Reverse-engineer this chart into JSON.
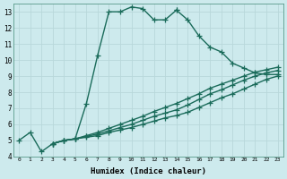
{
  "xlabel": "Humidex (Indice chaleur)",
  "bg_color": "#cdeaed",
  "line_color": "#1a6b5a",
  "grid_color": "#b8d8da",
  "xlim": [
    -0.5,
    23.5
  ],
  "ylim": [
    4,
    13.5
  ],
  "ytick_min": 4,
  "ytick_max": 13,
  "xticks": [
    0,
    1,
    2,
    3,
    4,
    5,
    6,
    7,
    8,
    9,
    10,
    11,
    12,
    13,
    14,
    15,
    16,
    17,
    18,
    19,
    20,
    21,
    22,
    23
  ],
  "yticks": [
    4,
    5,
    6,
    7,
    8,
    9,
    10,
    11,
    12,
    13
  ],
  "lines": [
    {
      "x": [
        0,
        1,
        2,
        3,
        4,
        5,
        6,
        7,
        8,
        9,
        10,
        11,
        12,
        13,
        14
      ],
      "y": [
        5.0,
        5.5,
        4.3,
        4.8,
        5.0,
        5.1,
        7.3,
        10.3,
        13.0,
        13.0,
        13.3,
        13.2,
        12.5,
        12.5,
        13.1
      ]
    },
    {
      "x": [
        14,
        15,
        16,
        17,
        18,
        19,
        20,
        21,
        22,
        23
      ],
      "y": [
        13.1,
        12.5,
        11.5,
        10.8,
        10.5,
        9.8,
        9.5,
        9.2,
        9.1,
        9.1
      ]
    },
    {
      "x": [
        3,
        4,
        5,
        6,
        7,
        8,
        9,
        10,
        11,
        12,
        13,
        14,
        15,
        16,
        17,
        18,
        19,
        20,
        21,
        22,
        23
      ],
      "y": [
        4.8,
        5.0,
        5.1,
        5.2,
        5.3,
        5.5,
        5.65,
        5.8,
        6.0,
        6.2,
        6.4,
        6.55,
        6.75,
        7.05,
        7.35,
        7.65,
        7.9,
        8.2,
        8.5,
        8.8,
        9.0
      ]
    },
    {
      "x": [
        3,
        4,
        5,
        6,
        7,
        8,
        9,
        10,
        11,
        12,
        13,
        14,
        15,
        16,
        17,
        18,
        19,
        20,
        21,
        22,
        23
      ],
      "y": [
        4.8,
        5.0,
        5.1,
        5.25,
        5.4,
        5.6,
        5.8,
        6.0,
        6.25,
        6.5,
        6.7,
        6.9,
        7.2,
        7.55,
        7.9,
        8.15,
        8.45,
        8.75,
        9.0,
        9.2,
        9.35
      ]
    },
    {
      "x": [
        3,
        4,
        5,
        6,
        7,
        8,
        9,
        10,
        11,
        12,
        13,
        14,
        15,
        16,
        17,
        18,
        19,
        20,
        21,
        22,
        23
      ],
      "y": [
        4.8,
        5.0,
        5.1,
        5.3,
        5.5,
        5.75,
        6.0,
        6.25,
        6.5,
        6.8,
        7.05,
        7.3,
        7.6,
        7.9,
        8.25,
        8.5,
        8.75,
        9.0,
        9.25,
        9.4,
        9.55
      ]
    }
  ],
  "marker": "+",
  "markersize": 4,
  "linewidth": 1.0
}
